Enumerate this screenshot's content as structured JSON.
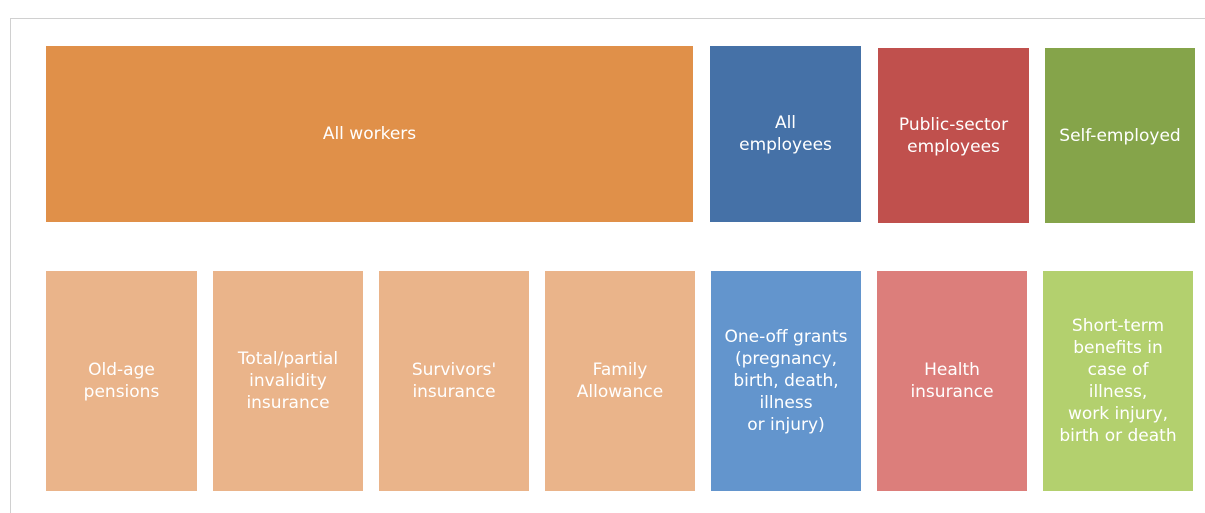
{
  "nodes": [
    {
      "lines": [
        "All workers"
      ]
    },
    {
      "lines": [
        "All",
        "employees"
      ]
    },
    {
      "lines": [
        "Public-sector",
        "employees"
      ]
    },
    {
      "lines": [
        "Self-employed"
      ]
    },
    {
      "lines": [
        "Old-age",
        "pensions"
      ]
    },
    {
      "lines": [
        "Total/partial",
        "invalidity",
        "insurance"
      ]
    },
    {
      "lines": [
        "Survivors'",
        "insurance"
      ]
    },
    {
      "lines": [
        "Family",
        "Allowance"
      ]
    },
    {
      "lines": [
        "One-off grants",
        "(pregnancy,",
        "birth, death,",
        "illness",
        "or injury)"
      ]
    },
    {
      "lines": [
        "Health",
        "insurance"
      ]
    },
    {
      "lines": [
        "Short-term",
        "benefits in",
        "case of",
        "illness,",
        "work injury,",
        "birth or death"
      ]
    }
  ]
}
